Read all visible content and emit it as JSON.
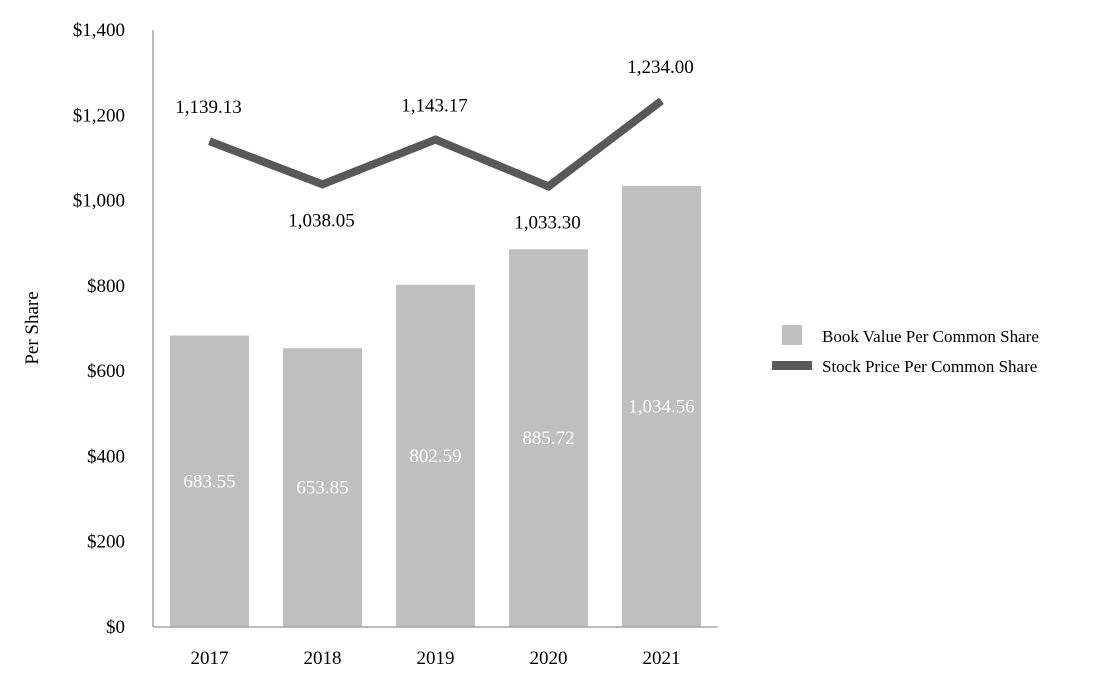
{
  "chart_data": {
    "type": "bar",
    "title": "",
    "xlabel": "",
    "ylabel": "Per Share",
    "ylim": [
      0,
      1400
    ],
    "y_ticks": [
      {
        "value": 0,
        "label": "$0"
      },
      {
        "value": 200,
        "label": "$200"
      },
      {
        "value": 400,
        "label": "$400"
      },
      {
        "value": 600,
        "label": "$600"
      },
      {
        "value": 800,
        "label": "$800"
      },
      {
        "value": 1000,
        "label": "$1,000"
      },
      {
        "value": 1200,
        "label": "$1,200"
      },
      {
        "value": 1400,
        "label": "$1,400"
      }
    ],
    "categories": [
      "2017",
      "2018",
      "2019",
      "2020",
      "2021"
    ],
    "grid": false,
    "legend_position": "right",
    "series": [
      {
        "name": "Book Value Per Common Share",
        "type": "bar",
        "color": "#bfbfbf",
        "label_color": "#ffffff",
        "values": [
          683.55,
          653.85,
          802.59,
          885.72,
          1034.56
        ],
        "labels": [
          "683.55",
          "653.85",
          "802.59",
          "885.72",
          "1,034.56"
        ]
      },
      {
        "name": "Stock Price Per Common Share",
        "type": "line",
        "color": "#595959",
        "label_color": "#000000",
        "values": [
          1139.13,
          1038.05,
          1143.17,
          1033.3,
          1234.0
        ],
        "labels": [
          "1,139.13",
          "1,038.05",
          "1,143.17",
          "1,033.30",
          "1,234.00"
        ]
      }
    ]
  }
}
